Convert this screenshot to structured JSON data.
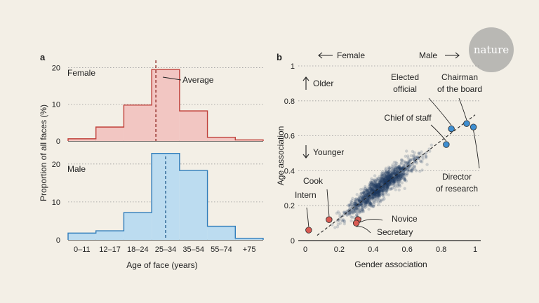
{
  "logo": {
    "text": "nature"
  },
  "chart_data": [
    {
      "panel": "a",
      "type": "bar",
      "xlabel": "Age of face (years)",
      "ylabel": "Proportion of all faces (%)",
      "categories": [
        "0–11",
        "12–17",
        "18–24",
        "25–34",
        "35–54",
        "55–74",
        "+75"
      ],
      "ylim": [
        0,
        22
      ],
      "yticks": [
        0,
        10,
        20
      ],
      "grid": true,
      "series": [
        {
          "name": "Female",
          "color": "#f2c6c2",
          "edge": "#c0403a",
          "values": [
            0.6,
            3.8,
            9.8,
            19.5,
            8.2,
            1.0,
            0.3
          ],
          "average": 3.15,
          "average_label": "Average"
        },
        {
          "name": "Male",
          "color": "#bcdcf0",
          "edge": "#2f7cba",
          "values": [
            1.8,
            2.4,
            7.2,
            22.8,
            18.3,
            3.6,
            0.4
          ],
          "average": 3.5
        }
      ]
    },
    {
      "panel": "b",
      "type": "scatter",
      "xlabel": "Gender association",
      "ylabel": "Age association",
      "xlim": [
        0,
        1
      ],
      "ylim": [
        0,
        1
      ],
      "xticks": [
        0,
        0.2,
        0.4,
        0.6,
        0.8,
        1
      ],
      "yticks": [
        0,
        0.2,
        0.4,
        0.6,
        0.8,
        1
      ],
      "direction_labels": {
        "x_low": "Female",
        "x_high": "Male",
        "y_high": "Older",
        "y_low": "Younger"
      },
      "trend": {
        "x": [
          0.07,
          1.0
        ],
        "y": [
          0.03,
          0.72
        ]
      },
      "highlighted": [
        {
          "label": "Intern",
          "x": 0.02,
          "y": 0.06,
          "group": "female-young"
        },
        {
          "label": "Cook",
          "x": 0.14,
          "y": 0.12,
          "group": "female-young"
        },
        {
          "label": "Novice",
          "x": 0.31,
          "y": 0.12,
          "group": "female-young"
        },
        {
          "label": "Secretary",
          "x": 0.3,
          "y": 0.1,
          "group": "female-young"
        },
        {
          "label": "Elected official",
          "x": 0.86,
          "y": 0.64,
          "group": "male-old"
        },
        {
          "label": "Chief of staff",
          "x": 0.83,
          "y": 0.55,
          "group": "male-old"
        },
        {
          "label": "Chairman of the board",
          "x": 0.95,
          "y": 0.67,
          "group": "male-old"
        },
        {
          "label": "Director of research",
          "x": 0.99,
          "y": 0.65,
          "group": "male-old"
        }
      ],
      "colors": {
        "female-young": "#d85a52",
        "male-old": "#3f8fd1",
        "cloud": "#1e3a5f"
      }
    }
  ]
}
